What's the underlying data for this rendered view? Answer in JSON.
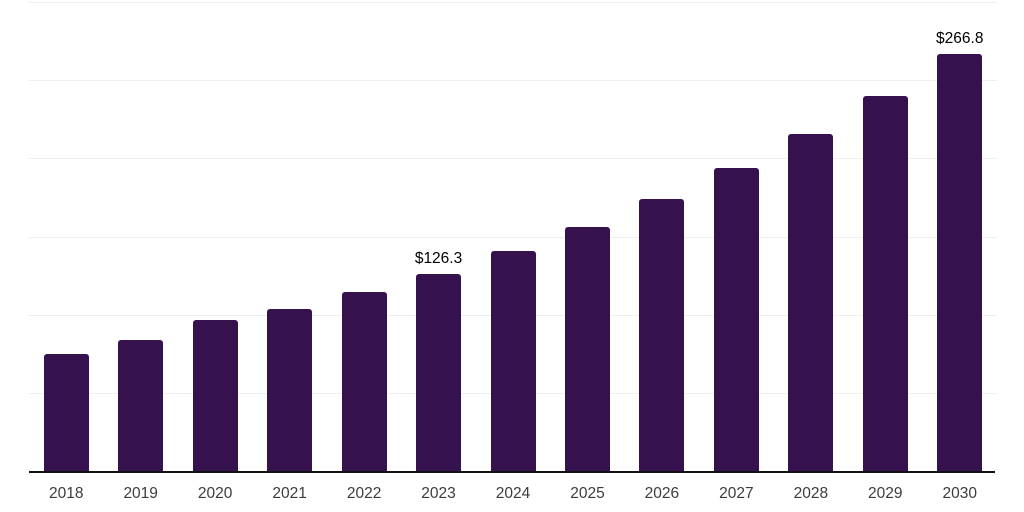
{
  "chart": {
    "background_color": "#ffffff",
    "bar_color": "#35124E",
    "gridline_color": "#efefef",
    "axis_line_color": "#111111",
    "tick_label_color": "#3c3c3c",
    "data_label_color": "#000000"
  },
  "chart_data": {
    "type": "bar",
    "title": "",
    "xlabel": "",
    "ylabel": "",
    "categories": [
      "2018",
      "2019",
      "2020",
      "2021",
      "2022",
      "2023",
      "2024",
      "2025",
      "2026",
      "2027",
      "2028",
      "2029",
      "2030"
    ],
    "values": [
      74.8,
      83.8,
      96.5,
      103.6,
      114.5,
      126.3,
      140.5,
      156.4,
      174.0,
      193.6,
      215.4,
      239.7,
      266.8
    ],
    "data_labels": [
      {
        "category": "2023",
        "text": "$126.3"
      },
      {
        "category": "2030",
        "text": "$266.8"
      }
    ],
    "ylim": [
      0,
      300
    ],
    "gridline_step": 50,
    "grid": true,
    "legend": false,
    "y_tick_labels_visible": false
  }
}
